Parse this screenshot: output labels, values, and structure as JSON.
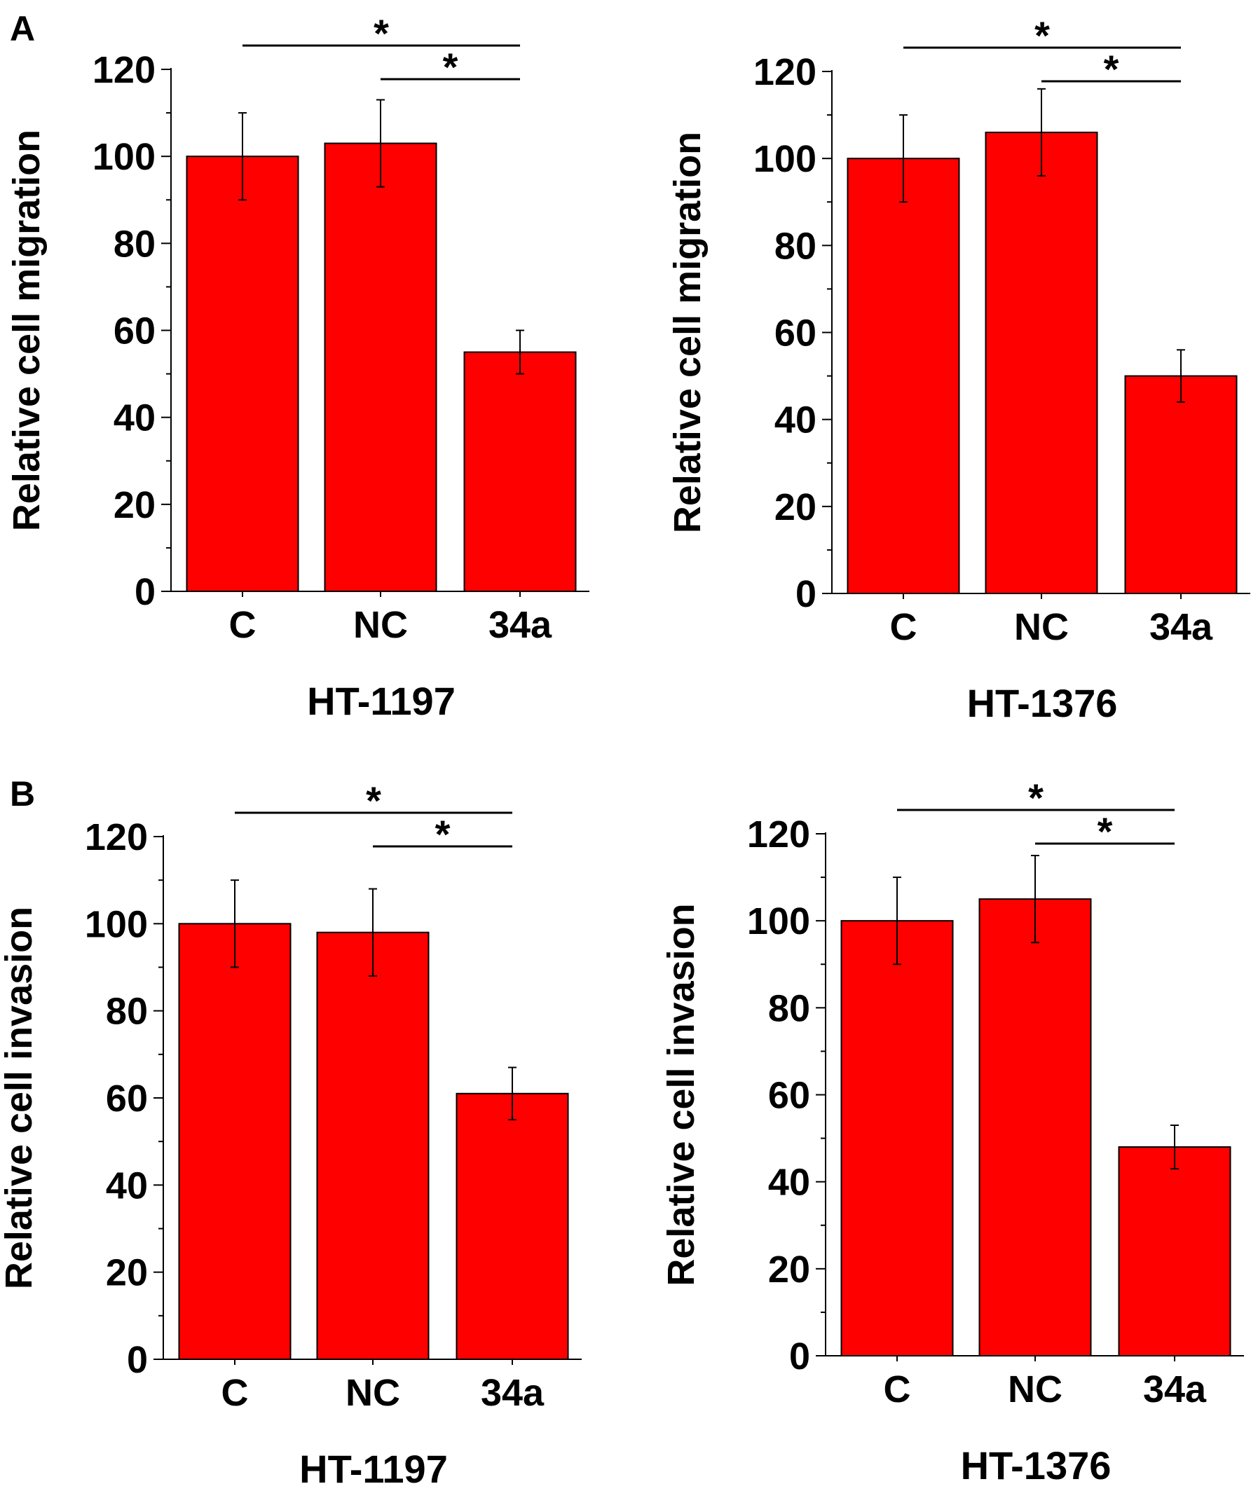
{
  "colors": {
    "bar": "#ff0000",
    "axis": "#000000"
  },
  "chart_data": [
    {
      "panel_label": "A",
      "type": "bar",
      "title": "",
      "xlabel": "HT-1197",
      "ylabel": "Relative cell migration",
      "categories": [
        "C",
        "NC",
        "34a"
      ],
      "values": [
        100,
        103,
        55
      ],
      "errors": [
        10,
        10,
        5
      ],
      "ylim": [
        0,
        120
      ],
      "yticks": [
        "0",
        "20",
        "40",
        "60",
        "80",
        "100",
        "120"
      ],
      "significance": [
        {
          "from": "C",
          "to": "34a",
          "label": "*"
        },
        {
          "from": "NC",
          "to": "34a",
          "label": "*"
        }
      ]
    },
    {
      "panel_label": "",
      "type": "bar",
      "title": "",
      "xlabel": "HT-1376",
      "ylabel": "Relative cell migration",
      "categories": [
        "C",
        "NC",
        "34a"
      ],
      "values": [
        100,
        106,
        50
      ],
      "errors": [
        10,
        10,
        6
      ],
      "ylim": [
        0,
        120
      ],
      "yticks": [
        "0",
        "20",
        "40",
        "60",
        "80",
        "100",
        "120"
      ],
      "significance": [
        {
          "from": "C",
          "to": "34a",
          "label": "*"
        },
        {
          "from": "NC",
          "to": "34a",
          "label": "*"
        }
      ]
    },
    {
      "panel_label": "B",
      "type": "bar",
      "title": "",
      "xlabel": "HT-1197",
      "ylabel": "Relative cell invasion",
      "categories": [
        "C",
        "NC",
        "34a"
      ],
      "values": [
        100,
        98,
        61
      ],
      "errors": [
        10,
        10,
        6
      ],
      "ylim": [
        0,
        120
      ],
      "yticks": [
        "0",
        "20",
        "40",
        "60",
        "80",
        "100",
        "120"
      ],
      "significance": [
        {
          "from": "C",
          "to": "34a",
          "label": "*"
        },
        {
          "from": "NC",
          "to": "34a",
          "label": "*"
        }
      ]
    },
    {
      "panel_label": "",
      "type": "bar",
      "title": "",
      "xlabel": "HT-1376",
      "ylabel": "Relative cell invasion",
      "categories": [
        "C",
        "NC",
        "34a"
      ],
      "values": [
        100,
        105,
        48
      ],
      "errors": [
        10,
        10,
        5
      ],
      "ylim": [
        0,
        120
      ],
      "yticks": [
        "0",
        "20",
        "40",
        "60",
        "80",
        "100",
        "120"
      ],
      "significance": [
        {
          "from": "C",
          "to": "34a",
          "label": "*"
        },
        {
          "from": "NC",
          "to": "34a",
          "label": "*"
        }
      ]
    }
  ]
}
